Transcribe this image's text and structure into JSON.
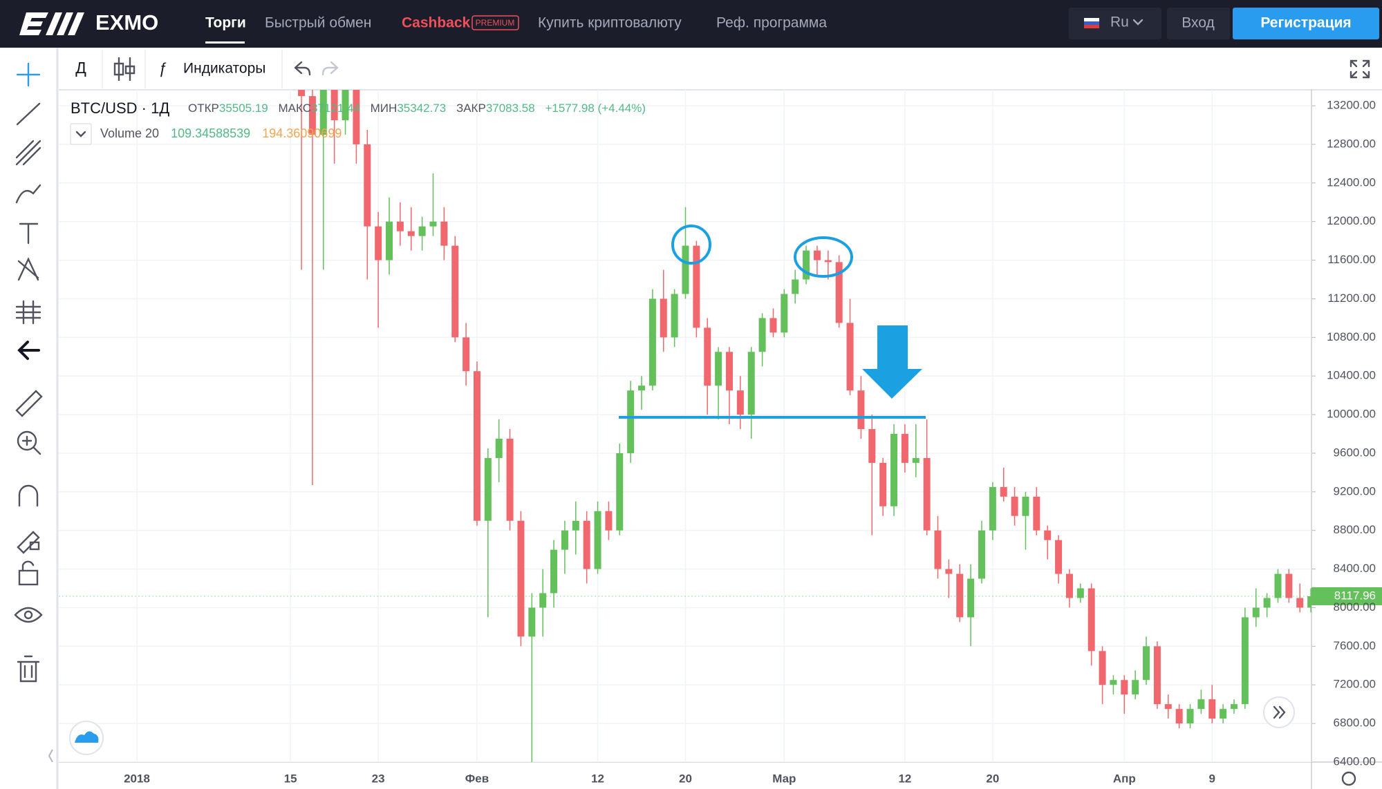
{
  "nav": {
    "logo": "EXMO",
    "items": [
      "Торги",
      "Быстрый обмен",
      "Купить криптовалюту",
      "Реф. программа"
    ],
    "cashback": "Cashback",
    "premium": "PREMIUM",
    "lang": "Ru",
    "login": "Вход",
    "register": "Регистрация"
  },
  "toolbar": {
    "interval": "Д",
    "indicators": "Индикаторы"
  },
  "legend": {
    "symbol": "BTC/USD · 1Д",
    "open_label": "ОТКР",
    "open": "35505.19",
    "high_label": "МАКС",
    "high": "37121.44",
    "low_label": "МИН",
    "low": "35342.73",
    "close_label": "ЗАКР",
    "close": "37083.58",
    "change": "+1577.98 (+4.44%)",
    "volume": "Volume 20",
    "volume_values": [
      "109.34588539",
      "194.36090699"
    ]
  },
  "chart_data": {
    "type": "candlestick",
    "categories": [
      "2018",
      null,
      null,
      null,
      null,
      null,
      null,
      null,
      null,
      null,
      null,
      null,
      null,
      null,
      "15",
      null,
      null,
      null,
      null,
      null,
      null,
      null,
      "23",
      null,
      null,
      null,
      null,
      null,
      null,
      null,
      null,
      "Фев",
      null,
      null,
      null,
      null,
      null,
      null,
      null,
      null,
      null,
      null,
      "12",
      null,
      null,
      null,
      null,
      null,
      null,
      null,
      "20",
      null,
      null,
      null,
      null,
      null,
      null,
      null,
      null,
      "Мар",
      null,
      null,
      null,
      null,
      null,
      null,
      null,
      null,
      null,
      null,
      "12",
      null,
      null,
      null,
      null,
      null,
      null,
      null,
      "20",
      null,
      null,
      null,
      null,
      null,
      null,
      null,
      null,
      null,
      null,
      null,
      "Апр",
      null,
      null,
      null,
      null,
      null,
      null,
      null,
      "9",
      null,
      null,
      null,
      null,
      null,
      null,
      null,
      null,
      null
    ],
    "open": [
      null,
      null,
      null,
      null,
      null,
      null,
      null,
      null,
      null,
      null,
      null,
      null,
      null,
      null,
      null,
      13900,
      13300,
      12900,
      13400,
      13050,
      13500,
      12800,
      11950,
      11600,
      12000,
      11900,
      11850,
      11950,
      12000,
      11750,
      10800,
      10450,
      8900,
      9550,
      9750,
      8900,
      7700,
      8000,
      8150,
      8600,
      8800,
      8900,
      8400,
      9000,
      8800,
      9600,
      10250,
      10300,
      11200,
      10800,
      11250,
      11750,
      10900,
      10300,
      10650,
      10250,
      10000,
      10650,
      11000,
      10850,
      11250,
      11400,
      11700,
      11600,
      11580,
      10950,
      10250,
      9850,
      9500,
      9050,
      9800,
      9500,
      9550,
      8800,
      8400,
      8350,
      7900,
      8300,
      8800,
      9250,
      9150,
      8950,
      9150,
      8800,
      8700,
      8350,
      8100,
      8200,
      7550,
      7200,
      7250,
      7100,
      7250,
      7600,
      7000,
      6950,
      6800,
      6950,
      7050,
      6850,
      6950,
      7000,
      7900,
      8000,
      8100,
      8350,
      8100,
      8000
    ],
    "high": [
      null,
      null,
      null,
      null,
      null,
      null,
      null,
      null,
      null,
      null,
      null,
      null,
      null,
      null,
      null,
      14100,
      13600,
      13700,
      13600,
      13700,
      13650,
      12950,
      12100,
      12250,
      12200,
      12150,
      12050,
      12500,
      12150,
      11850,
      10950,
      10550,
      9650,
      9950,
      9850,
      9000,
      8150,
      8400,
      8700,
      8900,
      9100,
      9000,
      9100,
      9100,
      9700,
      10350,
      10400,
      11300,
      11500,
      11300,
      12150,
      11800,
      11000,
      10700,
      10700,
      10400,
      10700,
      11050,
      11100,
      11300,
      11500,
      11750,
      11750,
      11700,
      11650,
      11200,
      10400,
      10000,
      9550,
      9900,
      9900,
      9900,
      9950,
      8950,
      8500,
      8450,
      8450,
      8900,
      9300,
      9450,
      9250,
      9200,
      9250,
      8850,
      8750,
      8400,
      8250,
      8250,
      7600,
      7300,
      7300,
      7350,
      7700,
      7650,
      7100,
      7000,
      7000,
      7150,
      7200,
      7000,
      7050,
      8000,
      8200,
      8150,
      8400,
      8400,
      8250,
      8200
    ],
    "low": [
      null,
      null,
      null,
      null,
      null,
      null,
      null,
      null,
      null,
      null,
      null,
      null,
      null,
      null,
      null,
      11500,
      9270,
      11500,
      12600,
      12900,
      12600,
      11400,
      10900,
      11450,
      11750,
      11700,
      11700,
      11850,
      11600,
      10750,
      10300,
      8850,
      7900,
      9300,
      8800,
      7600,
      6300,
      7700,
      8000,
      8350,
      8550,
      8250,
      8350,
      8700,
      8750,
      9500,
      10050,
      10250,
      10650,
      10700,
      11200,
      10800,
      10000,
      9950,
      9900,
      9850,
      9750,
      10500,
      10800,
      10800,
      11150,
      11350,
      11450,
      11400,
      10900,
      10200,
      9750,
      8750,
      8950,
      8950,
      9400,
      9350,
      8750,
      8300,
      8100,
      7850,
      7600,
      8250,
      8700,
      9100,
      8850,
      8600,
      8750,
      8500,
      8250,
      8000,
      8050,
      7400,
      7000,
      7100,
      6900,
      7050,
      7200,
      6950,
      6850,
      6750,
      6750,
      6900,
      6800,
      6800,
      6900,
      6950,
      7800,
      7900,
      8050,
      8050,
      7950,
      7950
    ],
    "close": [
      null,
      null,
      null,
      null,
      null,
      null,
      null,
      null,
      null,
      null,
      null,
      null,
      null,
      null,
      null,
      13300,
      12900,
      13400,
      13050,
      13500,
      12800,
      11950,
      11600,
      12000,
      11900,
      11850,
      11950,
      12000,
      11750,
      10800,
      10450,
      8900,
      9550,
      9750,
      8900,
      7700,
      8000,
      8150,
      8600,
      8800,
      8900,
      8400,
      9000,
      8800,
      9600,
      10250,
      10300,
      11200,
      10800,
      11250,
      11750,
      10900,
      10300,
      10650,
      10250,
      10000,
      10650,
      11000,
      10850,
      11250,
      11400,
      11700,
      11600,
      11580,
      10950,
      10250,
      9850,
      9500,
      9050,
      9800,
      9500,
      9550,
      8800,
      8400,
      8350,
      7900,
      8300,
      8800,
      9250,
      9150,
      8950,
      9150,
      8800,
      8700,
      8350,
      8100,
      8200,
      7550,
      7200,
      7250,
      7100,
      7250,
      7600,
      7000,
      6950,
      6800,
      6950,
      7050,
      6850,
      6950,
      7000,
      7900,
      8000,
      8100,
      8350,
      8100,
      8000,
      8118
    ],
    "up_color": "#63c05b",
    "down_color": "#f0686d",
    "ylim": [
      6400,
      13365
    ],
    "yticks": [
      {
        "value": 6400,
        "label": "6400.00"
      },
      {
        "value": 6800,
        "label": "6800.00"
      },
      {
        "value": 7200,
        "label": "7200.00"
      },
      {
        "value": 7600,
        "label": "7600.00"
      },
      {
        "value": 8000,
        "label": "8000.00"
      },
      {
        "value": 8400,
        "label": "8400.00"
      },
      {
        "value": 8800,
        "label": "8800.00"
      },
      {
        "value": 9200,
        "label": "9200.00"
      },
      {
        "value": 9600,
        "label": "9600.00"
      },
      {
        "value": 10000,
        "label": "10000.00"
      },
      {
        "value": 10400,
        "label": "10400.00"
      },
      {
        "value": 10800,
        "label": "10800.00"
      },
      {
        "value": 11200,
        "label": "11200.00"
      },
      {
        "value": 11600,
        "label": "11600.00"
      },
      {
        "value": 12000,
        "label": "12000.00"
      },
      {
        "value": 12400,
        "label": "12400.00"
      },
      {
        "value": 12800,
        "label": "12800.00"
      },
      {
        "value": 13200,
        "label": "13200.00"
      }
    ],
    "grid": true,
    "last_price_label": "8117.96"
  }
}
